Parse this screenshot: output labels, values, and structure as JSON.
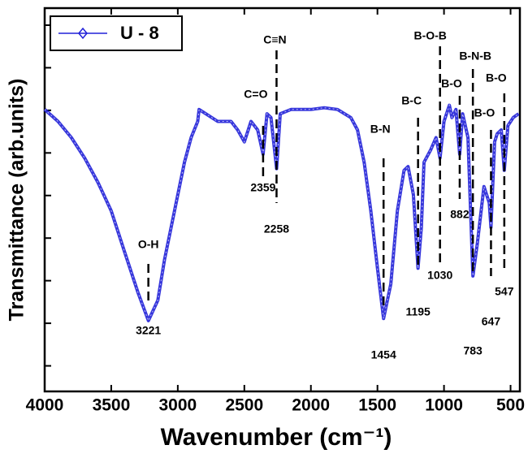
{
  "chart_data": {
    "type": "line",
    "xlabel": "Wavenumber (cm⁻¹)",
    "ylabel": "Transmittance (arb.units)",
    "xlim": [
      4000,
      430
    ],
    "xticks": [
      4000,
      3500,
      3000,
      2500,
      2000,
      1500,
      1000,
      500
    ],
    "ylim": [
      -0.6,
      8.4
    ],
    "yticks": [
      0,
      1,
      2,
      3,
      4,
      5,
      6,
      7,
      8
    ],
    "legend": "upper left",
    "series": [
      {
        "name": "U - 8",
        "color": "#2020d8",
        "x": [
          4000,
          3900,
          3800,
          3700,
          3600,
          3500,
          3400,
          3300,
          3221,
          3150,
          3100,
          3000,
          2950,
          2900,
          2850,
          2840,
          2700,
          2600,
          2550,
          2500,
          2450,
          2400,
          2359,
          2330,
          2300,
          2258,
          2230,
          2150,
          2000,
          1900,
          1800,
          1700,
          1650,
          1600,
          1550,
          1500,
          1454,
          1400,
          1350,
          1300,
          1270,
          1230,
          1195,
          1170,
          1150,
          1100,
          1060,
          1030,
          1000,
          960,
          940,
          910,
          882,
          860,
          820,
          783,
          750,
          700,
          660,
          647,
          620,
          600,
          570,
          547,
          520,
          480,
          440
        ],
        "values": [
          6.02,
          5.74,
          5.36,
          4.88,
          4.31,
          3.64,
          2.68,
          1.73,
          1.06,
          1.54,
          2.49,
          4.02,
          4.78,
          5.36,
          5.74,
          6.02,
          5.74,
          5.74,
          5.54,
          5.26,
          5.74,
          5.54,
          4.97,
          5.92,
          5.83,
          4.63,
          5.92,
          6.02,
          6.02,
          6.06,
          6.02,
          5.83,
          5.54,
          4.78,
          3.64,
          2.29,
          1.11,
          1.92,
          3.64,
          4.59,
          4.68,
          4.02,
          2.29,
          3.25,
          4.78,
          5.07,
          5.36,
          4.88,
          5.74,
          6.12,
          5.83,
          6.02,
          4.97,
          5.92,
          5.36,
          2.11,
          2.87,
          4.21,
          3.83,
          3.25,
          5.26,
          5.45,
          5.54,
          4.59,
          5.64,
          5.83,
          5.92
        ]
      }
    ],
    "peaks": [
      {
        "label": "O-H",
        "position": 3221
      },
      {
        "label": "C=O",
        "position": 2359
      },
      {
        "label": "C≡N",
        "position": 2258
      },
      {
        "label": "B-N",
        "position": 1454
      },
      {
        "label": "B-C",
        "position": 1195
      },
      {
        "label": "B-O-B",
        "position": 1030
      },
      {
        "label": "B-O",
        "position": 882
      },
      {
        "label": "B-N-B",
        "position": 783
      },
      {
        "label": "B-O",
        "position": 647
      },
      {
        "label": "B-O",
        "position": 547
      }
    ]
  }
}
